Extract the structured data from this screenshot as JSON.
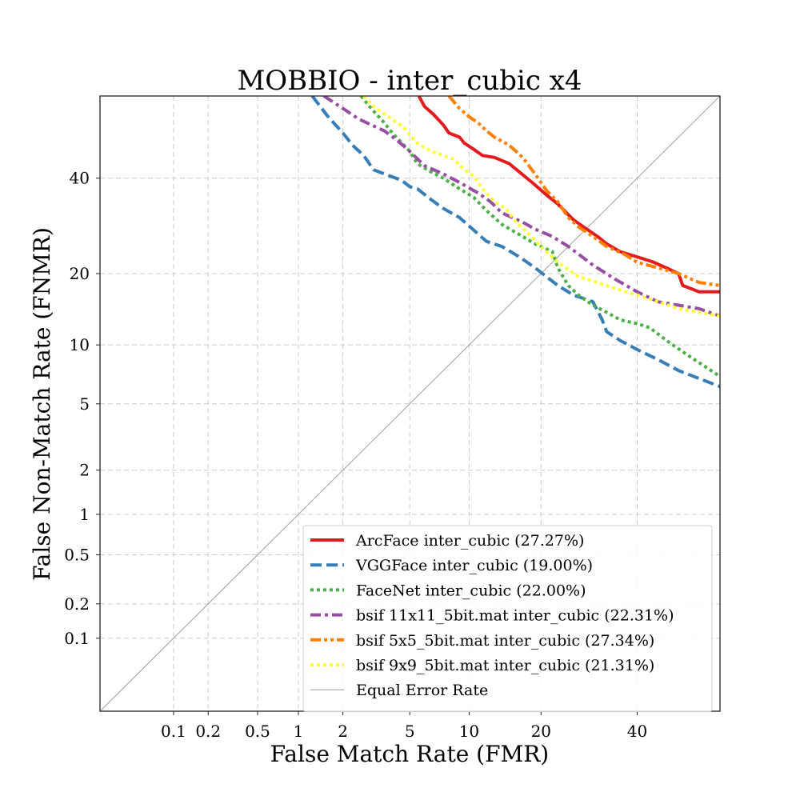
{
  "chart_data": {
    "type": "line",
    "title": "MOBBIO - inter_cubic x4",
    "xlabel": "False Match Rate (FMR)",
    "ylabel": "False Non-Match Rate (FNMR)",
    "x_scale": "probit",
    "y_scale": "probit",
    "xlim": [
      0.02,
      60
    ],
    "ylim": [
      0.02,
      60
    ],
    "grid": true,
    "legend_position": "lower-right",
    "x_ticks": [
      0.1,
      0.2,
      0.5,
      1,
      2,
      5,
      10,
      20,
      40
    ],
    "x_tick_labels": [
      "0.1",
      "0.2",
      "0.5",
      "1",
      "2",
      "5",
      "10",
      "20",
      "40"
    ],
    "y_ticks": [
      0.1,
      0.2,
      0.5,
      1,
      2,
      5,
      10,
      20,
      40
    ],
    "y_tick_labels": [
      "0.1",
      "0.2",
      "0.5",
      "1",
      "2",
      "5",
      "10",
      "20",
      "40"
    ],
    "series": [
      {
        "name": "ArcFace inter_cubic (27.27%)",
        "color": "#e41a1c",
        "style": "solid",
        "x": [
          5.6,
          6.0,
          6.7,
          7.5,
          8.0,
          9.0,
          9.5,
          10.5,
          11.5,
          13.0,
          15.0,
          16.5,
          18.5,
          21.0,
          23.0,
          26.0,
          28.0,
          31.0,
          33.0,
          36.0,
          40.0,
          44.0,
          47.0,
          50.0,
          51.0,
          55.0,
          60.0
        ],
        "y": [
          60.0,
          57.5,
          55.5,
          53.0,
          51.0,
          50.0,
          48.5,
          47.0,
          45.5,
          45.0,
          43.5,
          41.5,
          39.0,
          36.0,
          34.0,
          30.5,
          29.0,
          27.0,
          25.5,
          24.0,
          23.0,
          22.0,
          21.0,
          20.0,
          18.0,
          17.0,
          17.0
        ]
      },
      {
        "name": "VGGFace inter_cubic (19.00%)",
        "color": "#377eb8",
        "style": "dashed",
        "x": [
          1.25,
          1.6,
          2.0,
          2.3,
          2.7,
          3.1,
          3.6,
          4.5,
          5.0,
          5.5,
          6.5,
          7.5,
          9.0,
          11.0,
          12.0,
          14.0,
          16.5,
          19.0,
          23.0,
          26.0,
          30.0,
          32.0,
          33.0,
          36.0,
          40.0,
          45.0,
          50.0,
          60.0
        ],
        "y": [
          60.0,
          55.0,
          51.0,
          48.0,
          45.5,
          42.0,
          41.0,
          39.5,
          38.0,
          37.5,
          35.0,
          33.0,
          31.0,
          27.5,
          26.0,
          25.0,
          23.0,
          21.0,
          18.0,
          16.5,
          15.5,
          13.0,
          11.5,
          10.5,
          9.5,
          8.5,
          7.5,
          6.2
        ]
      },
      {
        "name": "FaceNet inter_cubic (22.00%)",
        "color": "#4daf4a",
        "style": "dotted",
        "x": [
          2.6,
          3.0,
          3.5,
          4.0,
          5.0,
          5.5,
          6.5,
          7.5,
          9.0,
          10.5,
          12.0,
          14.0,
          17.0,
          19.0,
          22.0,
          23.0,
          25.0,
          27.0,
          30.0,
          33.0,
          36.0,
          40.0,
          43.0,
          47.0,
          52.0,
          60.0
        ],
        "y": [
          60.0,
          57.0,
          54.0,
          51.0,
          46.5,
          43.5,
          41.5,
          40.0,
          37.5,
          35.5,
          32.5,
          29.5,
          27.0,
          25.5,
          24.0,
          21.0,
          18.0,
          16.5,
          15.0,
          14.0,
          13.0,
          12.5,
          12.0,
          10.5,
          9.0,
          7.0
        ]
      },
      {
        "name": "bsif 11x11_5bit.mat inter_cubic (22.31%)",
        "color": "#984ea3",
        "style": "dashdot",
        "x": [
          1.5,
          2.0,
          2.5,
          3.0,
          3.6,
          4.3,
          5.0,
          6.0,
          7.5,
          9.0,
          11.0,
          12.5,
          14.0,
          17.0,
          19.0,
          22.0,
          25.0,
          30.0,
          35.0,
          40.0,
          45.0,
          50.0,
          55.0,
          60.0
        ],
        "y": [
          60.0,
          57.0,
          54.5,
          53.0,
          51.5,
          49.0,
          46.5,
          43.0,
          41.0,
          39.0,
          36.5,
          34.5,
          32.0,
          30.0,
          28.5,
          27.0,
          25.0,
          21.5,
          19.0,
          17.0,
          15.5,
          15.0,
          14.5,
          13.5
        ]
      },
      {
        "name": "bsif 5x5_5bit.mat inter_cubic (27.34%)",
        "color": "#ff7f00",
        "style": "dashdotdot",
        "x": [
          8.0,
          9.0,
          10.0,
          11.0,
          12.0,
          13.0,
          15.0,
          17.0,
          19.0,
          21.0,
          23.0,
          25.0,
          27.0,
          30.0,
          33.0,
          37.0,
          40.0,
          45.0,
          50.0,
          55.0,
          60.0
        ],
        "y": [
          60.0,
          57.0,
          55.0,
          53.5,
          51.5,
          50.0,
          48.0,
          45.0,
          41.0,
          37.0,
          34.5,
          31.0,
          29.0,
          27.0,
          25.0,
          23.5,
          22.0,
          21.0,
          20.0,
          18.5,
          18.0
        ]
      },
      {
        "name": "bsif 9x9_5bit.mat inter_cubic (21.31%)",
        "color": "#ffff33",
        "style": "dotted",
        "x": [
          2.7,
          3.2,
          3.8,
          4.6,
          5.0,
          5.5,
          6.5,
          7.5,
          8.5,
          9.5,
          10.5,
          11.5,
          13.0,
          14.5,
          16.0,
          18.0,
          20.0,
          23.0,
          27.0,
          31.0,
          35.0,
          40.0,
          45.0,
          50.0,
          55.0,
          60.0
        ],
        "y": [
          60.0,
          57.0,
          55.0,
          52.5,
          50.5,
          48.5,
          46.5,
          45.5,
          44.5,
          42.0,
          40.5,
          37.5,
          34.5,
          33.0,
          30.0,
          27.5,
          25.0,
          22.0,
          19.5,
          18.5,
          17.5,
          16.5,
          15.5,
          14.5,
          14.0,
          13.5
        ]
      },
      {
        "name": "Equal Error Rate",
        "color": "#a0a0a0",
        "style": "thin",
        "x": [
          0.02,
          60.0
        ],
        "y": [
          0.02,
          60.0
        ]
      }
    ]
  }
}
